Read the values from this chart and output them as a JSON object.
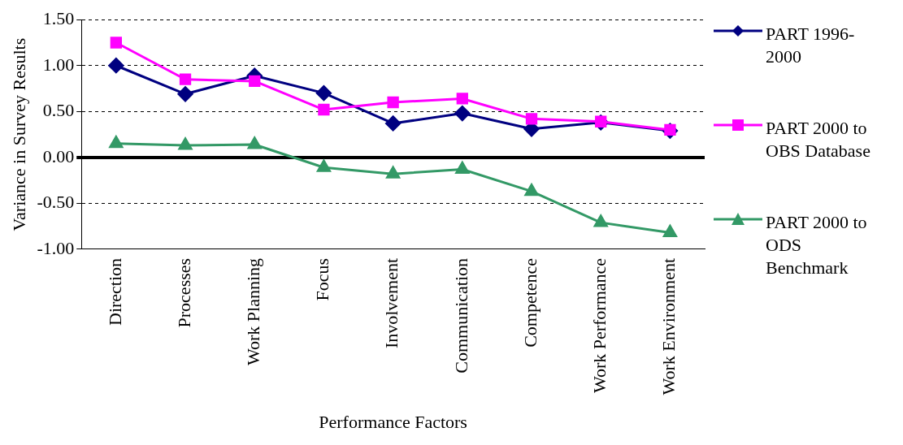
{
  "chart_data": {
    "type": "line",
    "xlabel": "Performance Factors",
    "ylabel": "Variance in Survey Results",
    "categories": [
      "Direction",
      "Processes",
      "Work Planning",
      "Focus",
      "Involvement",
      "Communication",
      "Competence",
      "Work Performance",
      "Work Environment"
    ],
    "ylim": [
      -1,
      1.5
    ],
    "yticks": [
      {
        "value": -1,
        "label": "-1.00"
      },
      {
        "value": -0.5,
        "label": "-0.50"
      },
      {
        "value": 0,
        "label": "0.00"
      },
      {
        "value": 0.5,
        "label": "0.50"
      },
      {
        "value": 1,
        "label": "1.00"
      },
      {
        "value": 1.5,
        "label": "1.50"
      }
    ],
    "grid": "y",
    "legend": "right",
    "line_style": "solid",
    "series": [
      {
        "name": "PART 1996-2000",
        "color": "#000080",
        "marker": "diamond",
        "values": [
          1.0,
          0.69,
          0.89,
          0.7,
          0.37,
          0.48,
          0.31,
          0.38,
          0.29
        ]
      },
      {
        "name": "PART 2000 to OBS Database",
        "color": "#ff00ff",
        "marker": "square",
        "values": [
          1.25,
          0.85,
          0.83,
          0.52,
          0.6,
          0.64,
          0.42,
          0.39,
          0.3
        ]
      },
      {
        "name": "PART 2000 to ODS Benchmark",
        "color": "#339966",
        "marker": "triangle",
        "values": [
          0.15,
          0.13,
          0.14,
          -0.11,
          -0.18,
          -0.13,
          -0.37,
          -0.71,
          -0.82
        ]
      }
    ]
  }
}
